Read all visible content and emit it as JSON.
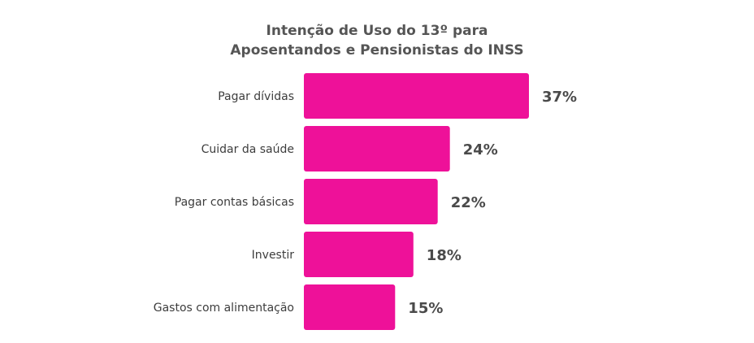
{
  "chart_data": {
    "type": "bar",
    "orientation": "horizontal",
    "title_lines": [
      "Intenção de Uso do 13º para",
      "Aposentandos e Pensionistas do INSS"
    ],
    "categories": [
      "Pagar dívidas",
      "Cuidar da saúde",
      "Pagar contas básicas",
      "Investir",
      "Gastos com alimentação"
    ],
    "values": [
      37,
      24,
      22,
      18,
      15
    ],
    "value_labels": [
      "37%",
      "24%",
      "22%",
      "18%",
      "15%"
    ],
    "unit": "%",
    "bar_color": "#ee1199",
    "grid": false,
    "legend": "none"
  }
}
